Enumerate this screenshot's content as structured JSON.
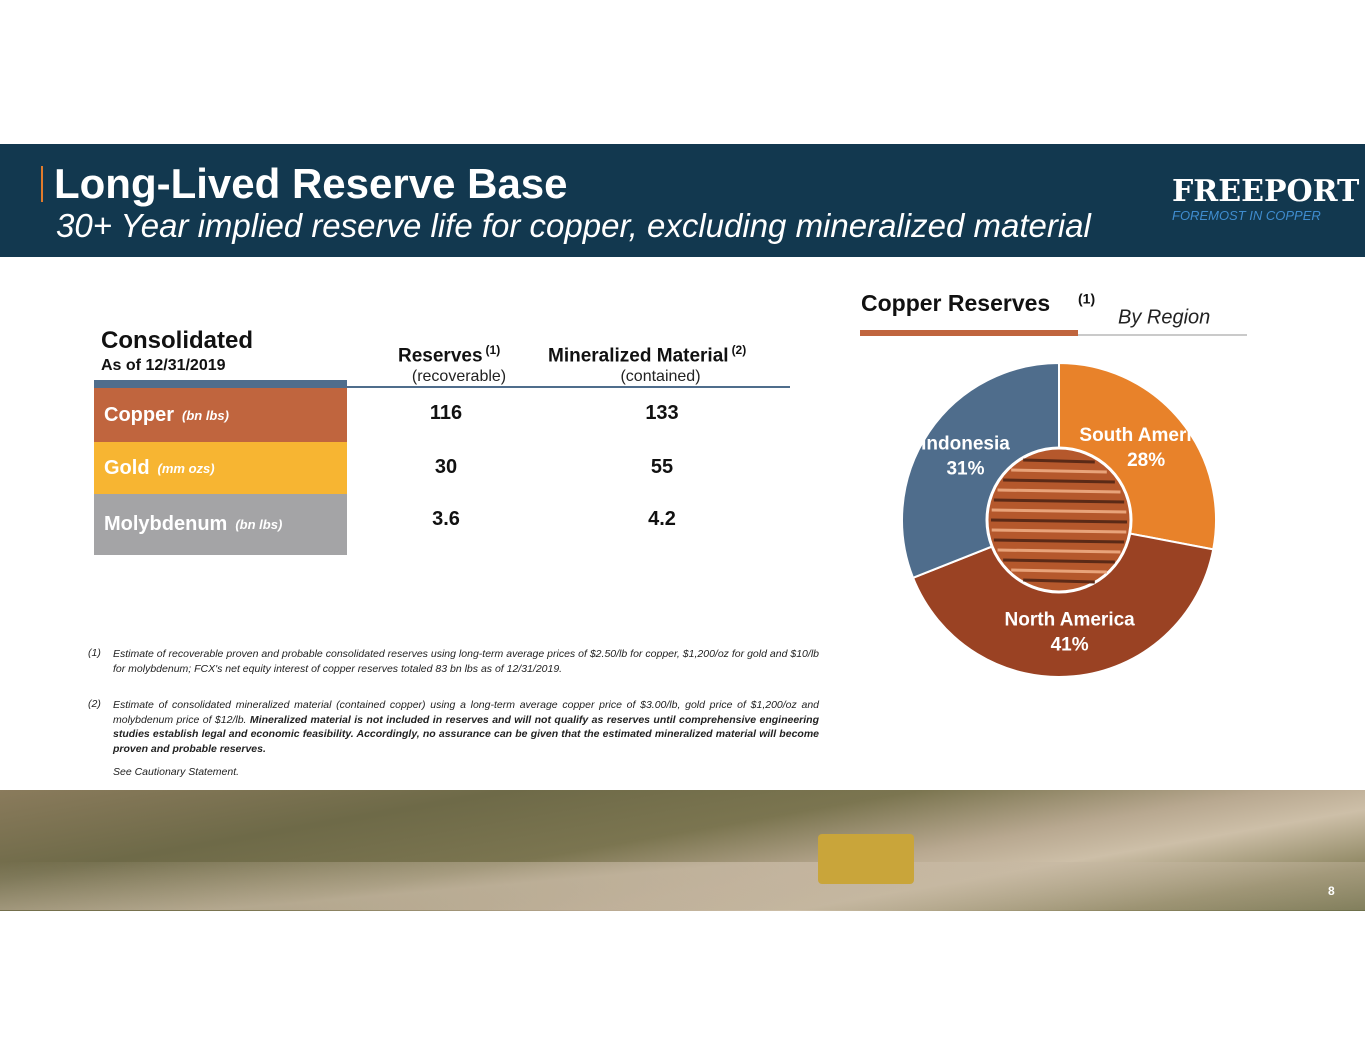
{
  "header": {
    "title": "Long-Lived Reserve Base",
    "subtitle": "30+ Year implied reserve life for copper, excluding mineralized material",
    "logo": "FREEPORT",
    "tagline": "FOREMOST IN COPPER"
  },
  "table": {
    "title": "Consolidated",
    "date": "As of 12/31/2019",
    "columns": [
      {
        "name": "Reserves",
        "note": "(1)",
        "sub": "(recoverable)"
      },
      {
        "name": "Mineralized Material",
        "note": "(2)",
        "sub": "(contained)"
      }
    ],
    "rows": [
      {
        "label": "Copper",
        "unit": "(bn lbs)",
        "values": [
          "116",
          "133"
        ]
      },
      {
        "label": "Gold",
        "unit": "(mm ozs)",
        "values": [
          "30",
          "55"
        ]
      },
      {
        "label": "Molybdenum",
        "unit": "(bn lbs)",
        "values": [
          "3.6",
          "4.2"
        ]
      }
    ]
  },
  "footnotes": [
    {
      "marker": "(1)",
      "text": "Estimate of recoverable proven and probable consolidated reserves using long-term average prices of $2.50/lb for copper, $1,200/oz for gold and $10/lb for molybdenum; FCX's net equity interest of copper reserves totaled 83 bn lbs as of 12/31/2019."
    },
    {
      "marker": "(2)",
      "text": "Estimate of consolidated mineralized material (contained copper) using a long-term average copper price of $3.00/lb, gold price of $1,200/oz and molybdenum price of $12/lb.",
      "bold_text": "Mineralized material is not included in reserves and will not qualify as reserves until comprehensive engineering studies establish legal and economic feasibility. Accordingly, no assurance can be given that the estimated mineralized material will become proven and probable reserves."
    }
  ],
  "cautionary": "See Cautionary Statement.",
  "page_number": "8",
  "chart_data": {
    "type": "pie",
    "title": "Copper Reserves",
    "title_note": "(1)",
    "subtitle": "By Region",
    "categories": [
      "South America",
      "North America",
      "Indonesia"
    ],
    "values": [
      28,
      41,
      31
    ],
    "value_labels": [
      "28%",
      "41%",
      "31%"
    ],
    "colors": [
      "#e8822a",
      "#9a4223",
      "#4f6d8c"
    ]
  }
}
